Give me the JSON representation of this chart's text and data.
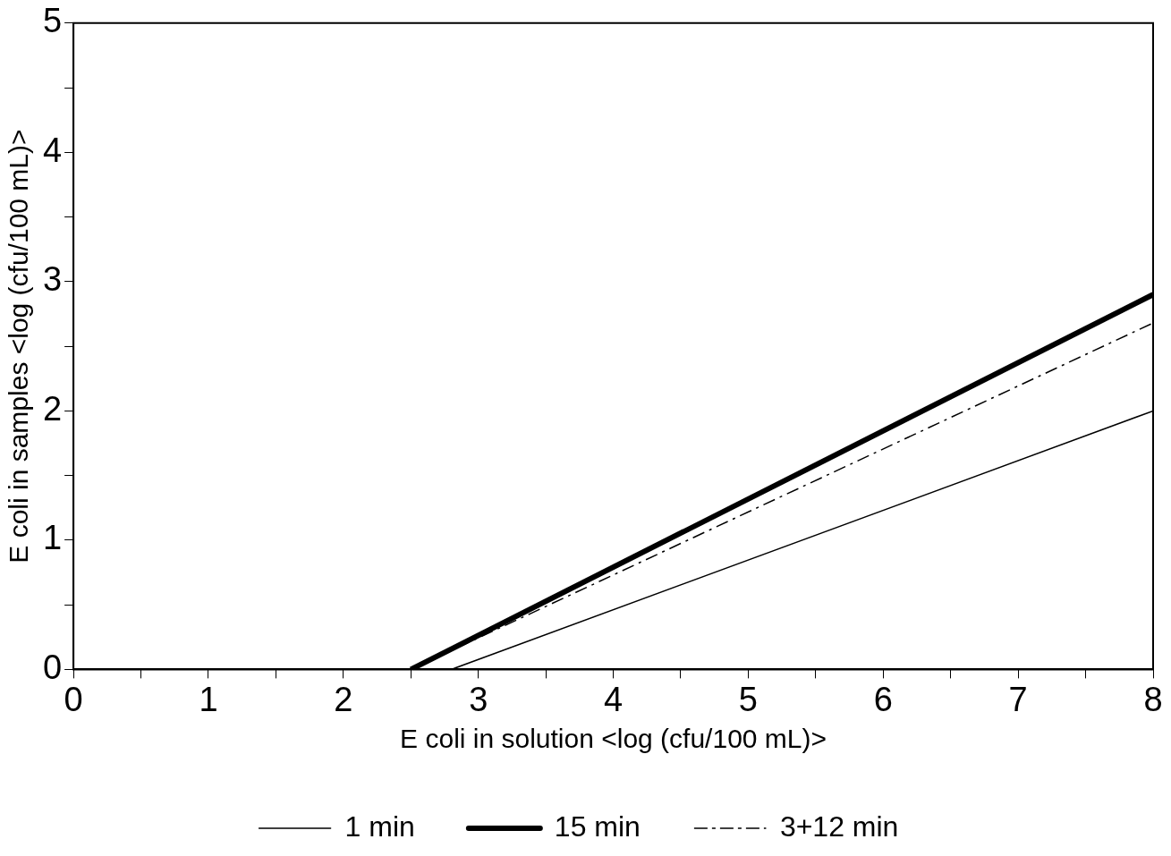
{
  "chart_data": {
    "type": "line",
    "xlabel": "E coli in solution <log (cfu/100 mL)>",
    "ylabel": "E coli in samples <log (cfu/100 mL)>",
    "xlim": [
      0,
      8
    ],
    "ylim": [
      0,
      5
    ],
    "xticks": [
      0,
      {
        "value": 0.5,
        "label": null
      },
      1,
      {
        "value": 1.5,
        "label": null
      },
      2,
      {
        "value": 2.5,
        "label": null
      },
      3,
      {
        "value": 3.5,
        "label": null
      },
      4,
      {
        "value": 4.5,
        "label": null
      },
      5,
      {
        "value": 5.5,
        "label": null
      },
      6,
      {
        "value": 6.5,
        "label": null
      },
      7,
      {
        "value": 7.5,
        "label": null
      },
      8
    ],
    "yticks": [
      0,
      {
        "value": 0.5,
        "label": null
      },
      1,
      {
        "value": 1.5,
        "label": null
      },
      2,
      {
        "value": 2.5,
        "label": null
      },
      3,
      {
        "value": 3.5,
        "label": null
      },
      4,
      {
        "value": 4.5,
        "label": null
      },
      5
    ],
    "grid": false,
    "legend": "bottom",
    "series": [
      {
        "name": "1 min",
        "color": "#000000",
        "x": [
          2.8,
          8
        ],
        "values": [
          0,
          2.0
        ],
        "line_style": "solid"
      },
      {
        "name": "15 min",
        "color": "#000000",
        "x": [
          2.5,
          8
        ],
        "values": [
          0,
          2.9
        ],
        "line_style": "solid"
      },
      {
        "name": "3+12 min",
        "color": "#000000",
        "x": [
          2.5,
          8
        ],
        "values": [
          0,
          2.68
        ],
        "line_style": "dashed"
      }
    ]
  }
}
